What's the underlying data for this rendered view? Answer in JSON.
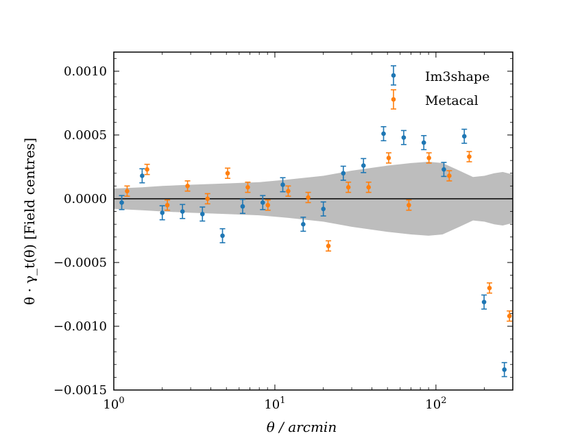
{
  "chart_data": {
    "type": "scatter",
    "title": "",
    "xlabel": "θ / arcmin",
    "ylabel": "θ · γ_t(θ) [Field centres]",
    "xscale": "log",
    "xlim": [
      1,
      300
    ],
    "ylim": [
      -0.0015,
      0.00115
    ],
    "x_tick_labels": [
      {
        "value": 1,
        "base": "10",
        "exp": "0"
      },
      {
        "value": 10,
        "base": "10",
        "exp": "1"
      },
      {
        "value": 100,
        "base": "10",
        "exp": "2"
      }
    ],
    "y_ticks": [
      -0.0015,
      -0.001,
      -0.0005,
      0.0,
      0.0005,
      0.001
    ],
    "y_tick_labels": [
      "−0.0015",
      "−0.0010",
      "−0.0005",
      "0.0000",
      "0.0005",
      "0.0010"
    ],
    "legend_position": "top-right",
    "grid": false,
    "zero_line": 0,
    "series": [
      {
        "name": "Im3shape",
        "color": "#1f77b4",
        "points": [
          {
            "x": 1.12,
            "y": -3e-05,
            "err": 5.5e-05
          },
          {
            "x": 1.5,
            "y": 0.00018,
            "err": 5.5e-05
          },
          {
            "x": 2.0,
            "y": -0.00011,
            "err": 5.5e-05
          },
          {
            "x": 2.67,
            "y": -0.0001,
            "err": 5.5e-05
          },
          {
            "x": 3.55,
            "y": -0.00012,
            "err": 5.5e-05
          },
          {
            "x": 4.73,
            "y": -0.00029,
            "err": 5.5e-05
          },
          {
            "x": 6.31,
            "y": -6e-05,
            "err": 5.5e-05
          },
          {
            "x": 8.41,
            "y": -3e-05,
            "err": 5.5e-05
          },
          {
            "x": 11.2,
            "y": 0.00011,
            "err": 5.5e-05
          },
          {
            "x": 15.0,
            "y": -0.0002,
            "err": 5.5e-05
          },
          {
            "x": 20.0,
            "y": -8e-05,
            "err": 5.5e-05
          },
          {
            "x": 26.6,
            "y": 0.0002,
            "err": 5.5e-05
          },
          {
            "x": 35.5,
            "y": 0.00026,
            "err": 5.5e-05
          },
          {
            "x": 47.3,
            "y": 0.00051,
            "err": 5.5e-05
          },
          {
            "x": 63.1,
            "y": 0.00048,
            "err": 5.5e-05
          },
          {
            "x": 84.1,
            "y": 0.00044,
            "err": 5.5e-05
          },
          {
            "x": 112,
            "y": 0.00023,
            "err": 5.5e-05
          },
          {
            "x": 150,
            "y": 0.00049,
            "err": 5.5e-05
          },
          {
            "x": 199,
            "y": -0.00081,
            "err": 5.5e-05
          },
          {
            "x": 266,
            "y": -0.00134,
            "err": 5.5e-05
          }
        ]
      },
      {
        "name": "Metacal",
        "color": "#ff7f0e",
        "points": [
          {
            "x": 1.21,
            "y": 6e-05,
            "err": 4e-05
          },
          {
            "x": 1.61,
            "y": 0.00023,
            "err": 4e-05
          },
          {
            "x": 2.15,
            "y": -5e-05,
            "err": 4e-05
          },
          {
            "x": 2.87,
            "y": 0.0001,
            "err": 4e-05
          },
          {
            "x": 3.82,
            "y": 0.0,
            "err": 4e-05
          },
          {
            "x": 5.09,
            "y": 0.0002,
            "err": 4e-05
          },
          {
            "x": 6.79,
            "y": 9e-05,
            "err": 4e-05
          },
          {
            "x": 9.05,
            "y": -5e-05,
            "err": 4e-05
          },
          {
            "x": 12.1,
            "y": 6e-05,
            "err": 4e-05
          },
          {
            "x": 16.1,
            "y": 1e-05,
            "err": 4e-05
          },
          {
            "x": 21.5,
            "y": -0.00037,
            "err": 4e-05
          },
          {
            "x": 28.6,
            "y": 9e-05,
            "err": 4e-05
          },
          {
            "x": 38.2,
            "y": 9e-05,
            "err": 4e-05
          },
          {
            "x": 50.9,
            "y": 0.00032,
            "err": 4e-05
          },
          {
            "x": 67.9,
            "y": -5e-05,
            "err": 4e-05
          },
          {
            "x": 90.5,
            "y": 0.00032,
            "err": 4e-05
          },
          {
            "x": 121,
            "y": 0.00018,
            "err": 4e-05
          },
          {
            "x": 161,
            "y": 0.00033,
            "err": 4e-05
          },
          {
            "x": 215,
            "y": -0.0007,
            "err": 4e-05
          },
          {
            "x": 286,
            "y": -0.00092,
            "err": 4e-05
          }
        ]
      }
    ],
    "band": {
      "color": "#bdbdbd",
      "x": [
        1,
        1.5,
        2,
        3,
        5,
        8,
        12,
        20,
        30,
        50,
        70,
        90,
        110,
        140,
        170,
        200,
        230,
        260,
        300
      ],
      "upper": [
        8e-05,
        9e-05,
        0.0001,
        0.00011,
        0.00012,
        0.00013,
        0.00015,
        0.00018,
        0.00022,
        0.00026,
        0.00028,
        0.00029,
        0.00028,
        0.00022,
        0.00017,
        0.00018,
        0.0002,
        0.00021,
        0.00019
      ],
      "lower": [
        -8e-05,
        -9e-05,
        -0.0001,
        -0.00011,
        -0.00012,
        -0.00013,
        -0.00015,
        -0.00018,
        -0.00022,
        -0.00026,
        -0.00028,
        -0.00029,
        -0.00028,
        -0.00022,
        -0.00017,
        -0.00018,
        -0.0002,
        -0.00021,
        -0.00019
      ]
    }
  }
}
